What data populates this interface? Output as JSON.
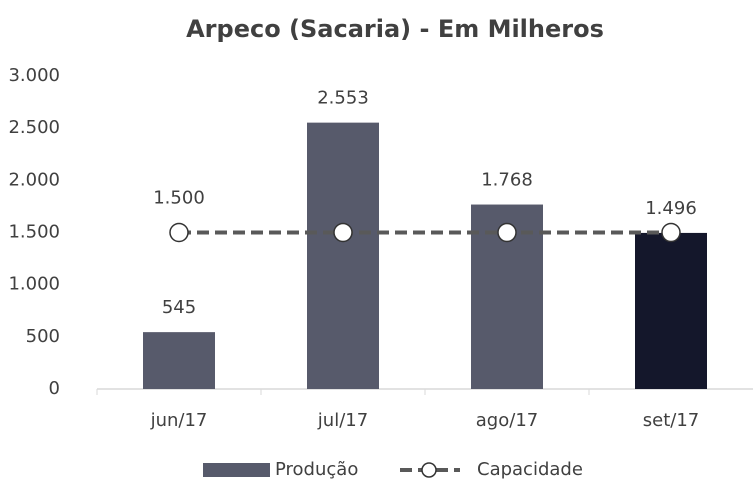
{
  "chart_data": {
    "type": "bar_line",
    "title": "Arpeco (Sacaria) - Em Milheros",
    "categories": [
      "jun/17",
      "jul/17",
      "ago/17",
      "set/17"
    ],
    "series": [
      {
        "name": "Produção",
        "type": "bar",
        "color": "#575a6b",
        "colors": [
          "#575a6b",
          "#575a6b",
          "#575a6b",
          "#14172b"
        ],
        "values": [
          545,
          2553,
          1768,
          1496
        ],
        "value_labels": [
          "545",
          "2.553",
          "1.768",
          "1.496"
        ]
      },
      {
        "name": "Capacidade",
        "type": "line",
        "color": "#595959",
        "values": [
          1500,
          1500,
          1500,
          1500
        ],
        "value_labels": [
          "1.500",
          null,
          null,
          null
        ]
      }
    ],
    "ylim": [
      0,
      3000
    ],
    "yticks": [
      0,
      500,
      {
        "value": 1000,
        "label": "1.000"
      },
      {
        "value": 1500,
        "label": "1.500"
      },
      {
        "value": 2000,
        "label": "2.000"
      },
      {
        "value": 2500,
        "label": "2.500"
      },
      {
        "value": 3000,
        "label": "3.000"
      }
    ],
    "grid": false,
    "legend": "bottom"
  }
}
